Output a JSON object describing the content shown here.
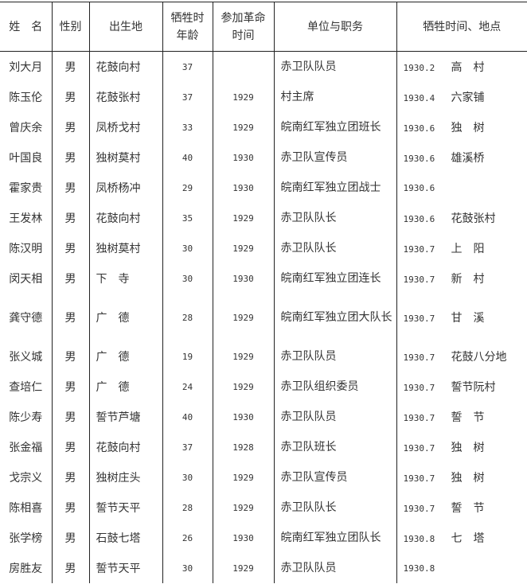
{
  "headers": [
    "姓　名",
    "性别",
    "出生地",
    "牺牲时年龄",
    "参加革命时间",
    "单位与职务",
    "牺牲时间、地点"
  ],
  "rows": [
    {
      "name": "刘大月",
      "sex": "男",
      "birthplace": "花鼓向村",
      "age": "37",
      "joined": "",
      "unit": "赤卫队队员",
      "date": "1930.2",
      "place": "高　村"
    },
    {
      "name": "陈玉伦",
      "sex": "男",
      "birthplace": "花鼓张村",
      "age": "37",
      "joined": "1929",
      "unit": "村主席",
      "date": "1930.4",
      "place": "六家铺"
    },
    {
      "name": "曾庆余",
      "sex": "男",
      "birthplace": "凤桥戈村",
      "age": "33",
      "joined": "1929",
      "unit": "皖南红军独立团班长",
      "date": "1930.6",
      "place": "独　树"
    },
    {
      "name": "叶国良",
      "sex": "男",
      "birthplace": "独树莫村",
      "age": "40",
      "joined": "1930",
      "unit": "赤卫队宣传员",
      "date": "1930.6",
      "place": "雄溪桥"
    },
    {
      "name": "霍家贵",
      "sex": "男",
      "birthplace": "凤桥杨冲",
      "age": "29",
      "joined": "1930",
      "unit": "皖南红军独立团战士",
      "date": "1930.6",
      "place": ""
    },
    {
      "name": "王发林",
      "sex": "男",
      "birthplace": "花鼓向村",
      "age": "35",
      "joined": "1929",
      "unit": "赤卫队队长",
      "date": "1930.6",
      "place": "花鼓张村"
    },
    {
      "name": "陈汉明",
      "sex": "男",
      "birthplace": "独树莫村",
      "age": "30",
      "joined": "1929",
      "unit": "赤卫队队长",
      "date": "1930.7",
      "place": "上　阳"
    },
    {
      "name": "闵天相",
      "sex": "男",
      "birthplace": "下　寺",
      "age": "30",
      "joined": "1930",
      "unit": "皖南红军独立团连长",
      "date": "1930.7",
      "place": "新　村"
    },
    {
      "name": "龚守德",
      "sex": "男",
      "birthplace": "广　德",
      "age": "28",
      "joined": "1929",
      "unit": "皖南红军独立团大队长",
      "date": "1930.7",
      "place": "甘　溪"
    },
    {
      "name": "张义城",
      "sex": "男",
      "birthplace": "广　德",
      "age": "19",
      "joined": "1929",
      "unit": "赤卫队队员",
      "date": "1930.7",
      "place": "花鼓八分地"
    },
    {
      "name": "查培仁",
      "sex": "男",
      "birthplace": "广　德",
      "age": "24",
      "joined": "1929",
      "unit": "赤卫队组织委员",
      "date": "1930.7",
      "place": "誓节阮村"
    },
    {
      "name": "陈少寿",
      "sex": "男",
      "birthplace": "誓节芦塘",
      "age": "40",
      "joined": "1930",
      "unit": "赤卫队队员",
      "date": "1930.7",
      "place": "誓　节"
    },
    {
      "name": "张金福",
      "sex": "男",
      "birthplace": "花鼓向村",
      "age": "37",
      "joined": "1928",
      "unit": "赤卫队班长",
      "date": "1930.7",
      "place": "独　树"
    },
    {
      "name": "戈宗义",
      "sex": "男",
      "birthplace": "独树庄头",
      "age": "30",
      "joined": "1929",
      "unit": "赤卫队宣传员",
      "date": "1930.7",
      "place": "独　树"
    },
    {
      "name": "陈相喜",
      "sex": "男",
      "birthplace": "誓节天平",
      "age": "28",
      "joined": "1929",
      "unit": "赤卫队队长",
      "date": "1930.7",
      "place": "誓　节"
    },
    {
      "name": "张学榜",
      "sex": "男",
      "birthplace": "石鼓七塔",
      "age": "26",
      "joined": "1930",
      "unit": "皖南红军独立团队长",
      "date": "1930.8",
      "place": "七　塔"
    },
    {
      "name": "房胜友",
      "sex": "男",
      "birthplace": "誓节天平",
      "age": "30",
      "joined": "1929",
      "unit": "赤卫队队员",
      "date": "1930.8",
      "place": ""
    }
  ]
}
